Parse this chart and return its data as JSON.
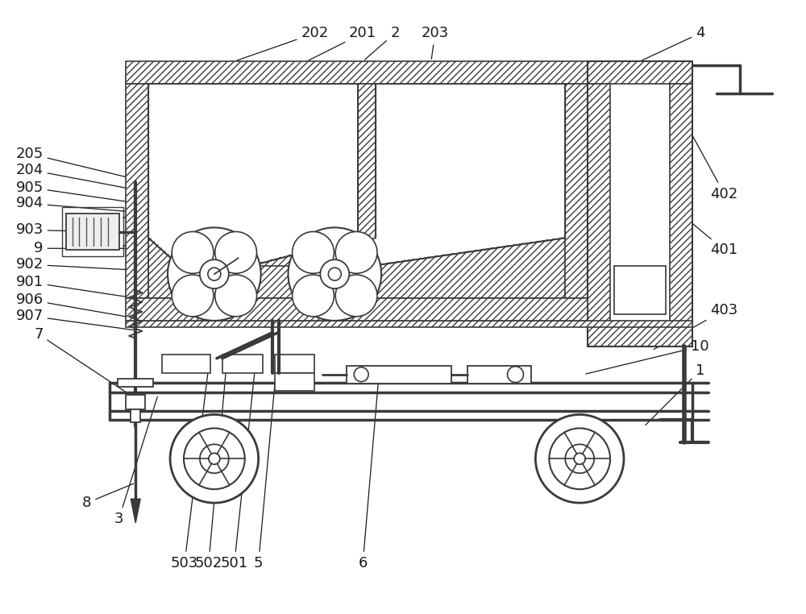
{
  "bg_color": "#ffffff",
  "line_color": "#3a3a3a",
  "figsize": [
    10.0,
    7.62
  ],
  "dpi": 100,
  "label_font": 13,
  "label_color": "#1a1a1a"
}
